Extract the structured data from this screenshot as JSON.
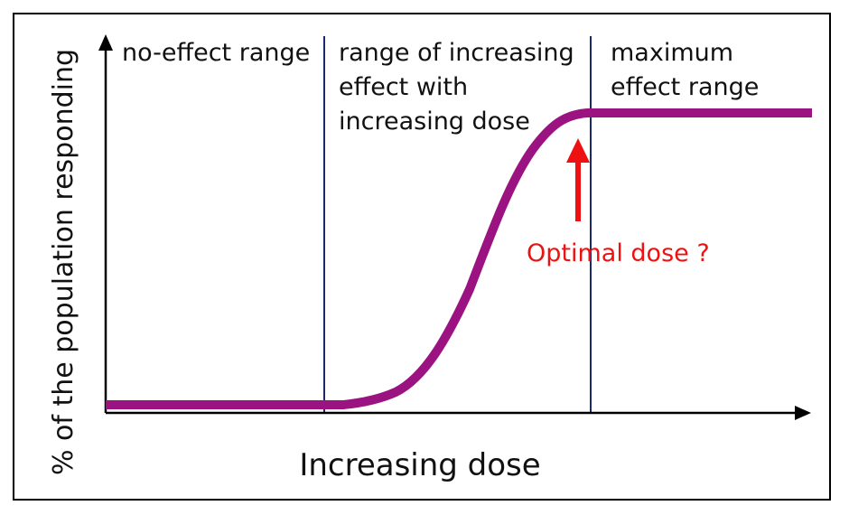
{
  "diagram": {
    "y_axis_label": "% of the population responding",
    "x_axis_label": "Increasing dose",
    "regions": [
      {
        "id": "no-effect",
        "lines": [
          "no-effect range"
        ]
      },
      {
        "id": "increasing-effect",
        "lines": [
          "range of increasing",
          "effect with",
          "increasing dose"
        ]
      },
      {
        "id": "maximum-effect",
        "lines": [
          "maximum",
          "effect range"
        ]
      }
    ],
    "annotation": {
      "text": "Optimal dose ?"
    }
  },
  "colors": {
    "curve": "#9b1281",
    "annotation": "#ee1111",
    "dividers": "#1a2a6c",
    "axes": "#000000"
  }
}
